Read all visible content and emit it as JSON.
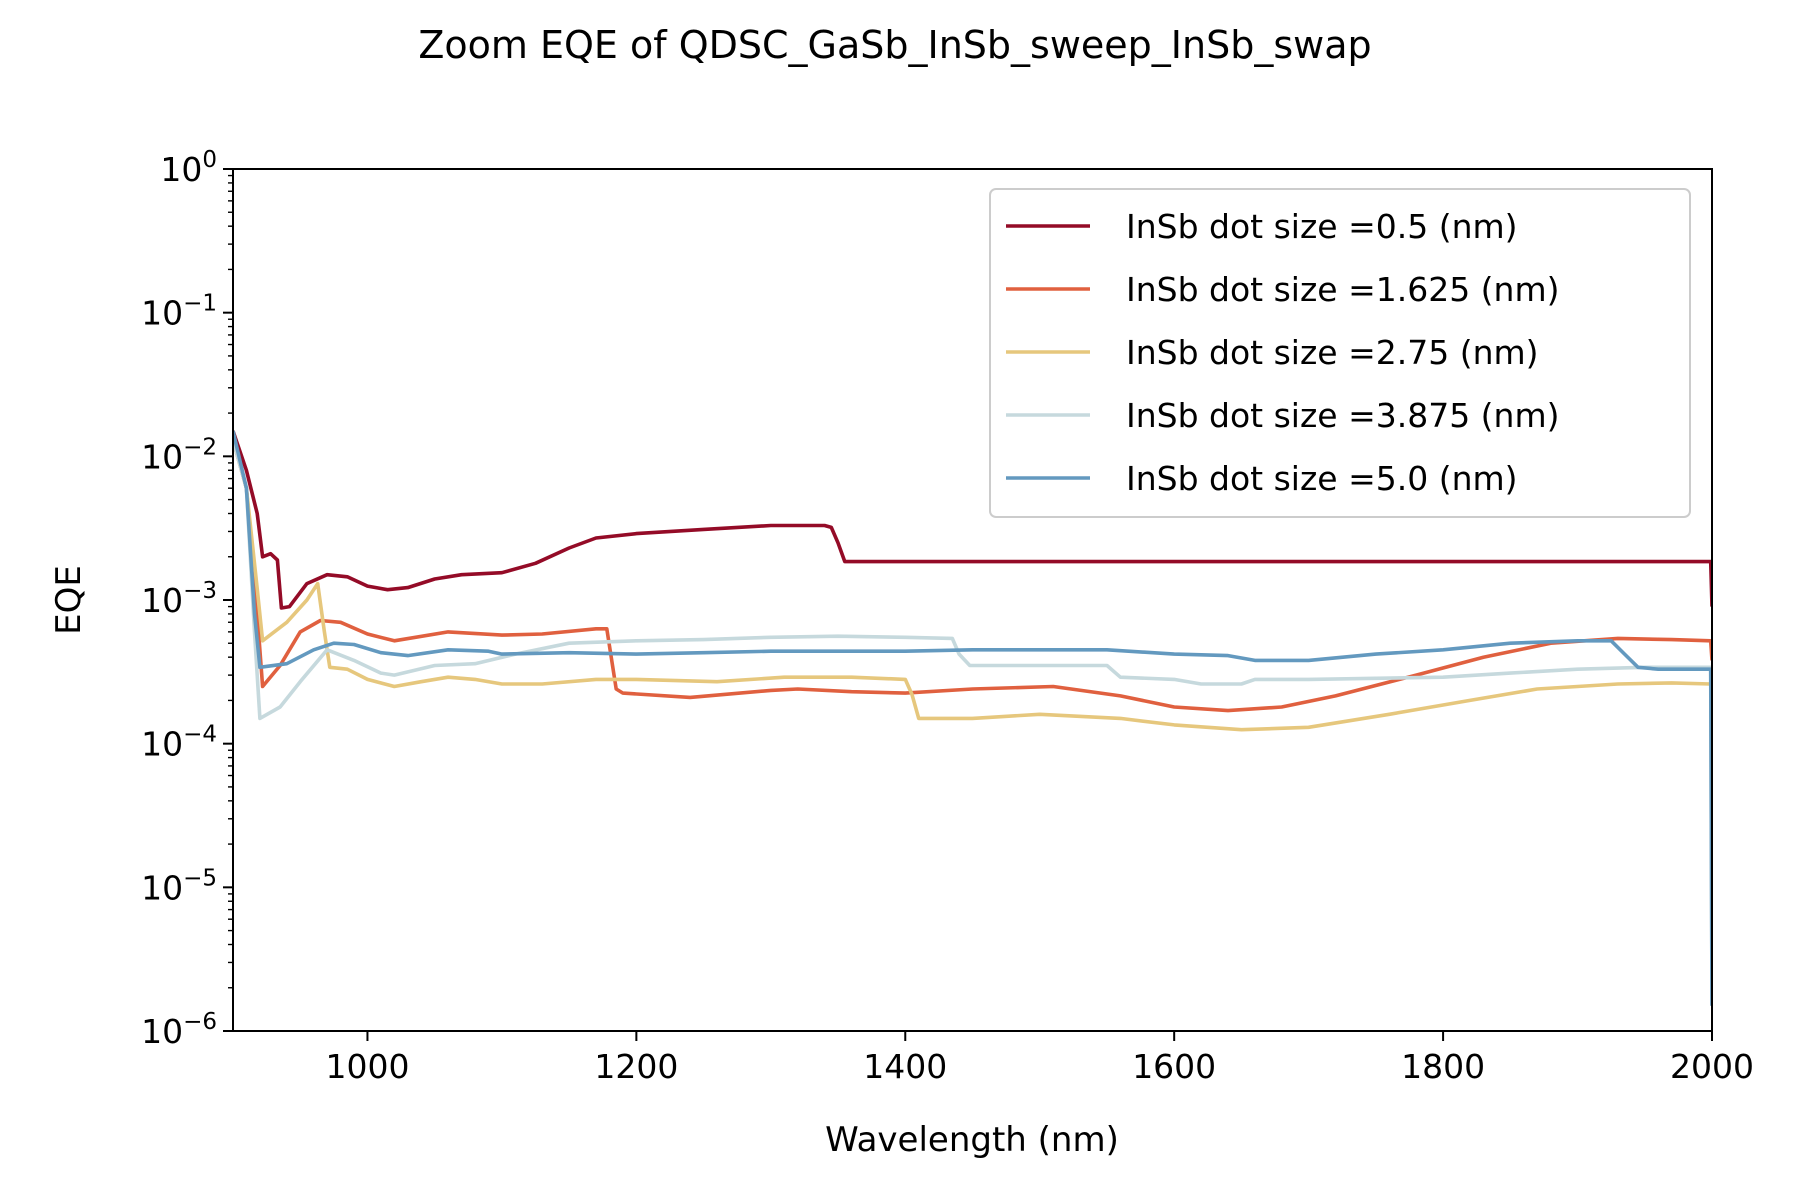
{
  "chart_data": {
    "type": "line",
    "title": "Zoom EQE of QDSC_GaSb_InSb_sweep_InSb_swap",
    "xlabel": "Wavelength (nm)",
    "ylabel": "EQE",
    "xlim": [
      900,
      2000
    ],
    "ylim": [
      1e-06,
      1
    ],
    "yscale": "log",
    "grid": false,
    "legend_position": "upper right",
    "x_ticks": [
      "1000",
      "1200",
      "1400",
      "1600",
      "1800",
      "2000"
    ],
    "y_ticks": [
      {
        "base": "10",
        "exp": "0",
        "value": 1
      },
      {
        "base": "10",
        "exp": "−1",
        "value": 0.1
      },
      {
        "base": "10",
        "exp": "−2",
        "value": 0.01
      },
      {
        "base": "10",
        "exp": "−3",
        "value": 0.001
      },
      {
        "base": "10",
        "exp": "−4",
        "value": 0.0001
      },
      {
        "base": "10",
        "exp": "−5",
        "value": 1e-05
      },
      {
        "base": "10",
        "exp": "−6",
        "value": 1e-06
      }
    ],
    "series": [
      {
        "name": "InSb dot size =0.5 (nm)",
        "color": "#940b27",
        "points": [
          [
            900,
            0.015
          ],
          [
            910,
            0.008
          ],
          [
            918,
            0.004
          ],
          [
            922,
            0.002
          ],
          [
            928,
            0.0021
          ],
          [
            933,
            0.0019
          ],
          [
            936,
            0.00088
          ],
          [
            942,
            0.0009
          ],
          [
            955,
            0.0013
          ],
          [
            970,
            0.0015
          ],
          [
            985,
            0.00145
          ],
          [
            1000,
            0.00125
          ],
          [
            1015,
            0.00118
          ],
          [
            1030,
            0.00122
          ],
          [
            1050,
            0.0014
          ],
          [
            1070,
            0.0015
          ],
          [
            1100,
            0.00155
          ],
          [
            1125,
            0.0018
          ],
          [
            1150,
            0.0023
          ],
          [
            1170,
            0.0027
          ],
          [
            1200,
            0.0029
          ],
          [
            1250,
            0.0031
          ],
          [
            1300,
            0.0033
          ],
          [
            1340,
            0.0033
          ],
          [
            1345,
            0.0032
          ],
          [
            1350,
            0.0025
          ],
          [
            1355,
            0.00185
          ],
          [
            1400,
            0.00185
          ],
          [
            1600,
            0.00185
          ],
          [
            1800,
            0.00185
          ],
          [
            1999,
            0.00185
          ],
          [
            2000,
            0.0009
          ]
        ]
      },
      {
        "name": "InSb dot size =1.625 (nm)",
        "color": "#e0603f",
        "points": [
          [
            900,
            0.013
          ],
          [
            910,
            0.006
          ],
          [
            918,
            0.0008
          ],
          [
            922,
            0.00025
          ],
          [
            935,
            0.00035
          ],
          [
            950,
            0.0006
          ],
          [
            965,
            0.00072
          ],
          [
            980,
            0.0007
          ],
          [
            1000,
            0.00058
          ],
          [
            1020,
            0.00052
          ],
          [
            1060,
            0.0006
          ],
          [
            1100,
            0.00057
          ],
          [
            1130,
            0.00058
          ],
          [
            1170,
            0.00063
          ],
          [
            1178,
            0.00063
          ],
          [
            1185,
            0.00024
          ],
          [
            1190,
            0.000225
          ],
          [
            1240,
            0.00021
          ],
          [
            1300,
            0.000235
          ],
          [
            1320,
            0.00024
          ],
          [
            1360,
            0.00023
          ],
          [
            1400,
            0.000225
          ],
          [
            1450,
            0.00024
          ],
          [
            1510,
            0.00025
          ],
          [
            1560,
            0.000215
          ],
          [
            1600,
            0.00018
          ],
          [
            1640,
            0.00017
          ],
          [
            1680,
            0.00018
          ],
          [
            1720,
            0.000215
          ],
          [
            1780,
            0.0003
          ],
          [
            1830,
            0.0004
          ],
          [
            1880,
            0.0005
          ],
          [
            1930,
            0.00054
          ],
          [
            1970,
            0.00053
          ],
          [
            1999,
            0.00052
          ],
          [
            2000,
            0.00038
          ]
        ]
      },
      {
        "name": "InSb dot size =2.75 (nm)",
        "color": "#e6c77d",
        "points": [
          [
            900,
            0.013
          ],
          [
            910,
            0.006
          ],
          [
            918,
            0.0012
          ],
          [
            922,
            0.00052
          ],
          [
            940,
            0.0007
          ],
          [
            955,
            0.001
          ],
          [
            963,
            0.0013
          ],
          [
            968,
            0.0006
          ],
          [
            972,
            0.00034
          ],
          [
            985,
            0.00033
          ],
          [
            1000,
            0.00028
          ],
          [
            1020,
            0.00025
          ],
          [
            1040,
            0.00027
          ],
          [
            1060,
            0.00029
          ],
          [
            1080,
            0.00028
          ],
          [
            1100,
            0.00026
          ],
          [
            1130,
            0.00026
          ],
          [
            1170,
            0.00028
          ],
          [
            1200,
            0.00028
          ],
          [
            1260,
            0.00027
          ],
          [
            1310,
            0.00029
          ],
          [
            1360,
            0.00029
          ],
          [
            1400,
            0.00028
          ],
          [
            1405,
            0.00022
          ],
          [
            1410,
            0.00015
          ],
          [
            1450,
            0.00015
          ],
          [
            1500,
            0.00016
          ],
          [
            1560,
            0.00015
          ],
          [
            1600,
            0.000135
          ],
          [
            1650,
            0.000125
          ],
          [
            1700,
            0.00013
          ],
          [
            1760,
            0.00016
          ],
          [
            1820,
            0.0002
          ],
          [
            1870,
            0.00024
          ],
          [
            1930,
            0.00026
          ],
          [
            1970,
            0.000265
          ],
          [
            1999,
            0.00026
          ],
          [
            2000,
            0.00019
          ]
        ]
      },
      {
        "name": "InSb dot size =3.875 (nm)",
        "color": "#c6d9dd",
        "points": [
          [
            900,
            0.013
          ],
          [
            910,
            0.006
          ],
          [
            916,
            0.0006
          ],
          [
            920,
            0.00015
          ],
          [
            935,
            0.00018
          ],
          [
            950,
            0.00027
          ],
          [
            970,
            0.00045
          ],
          [
            990,
            0.00038
          ],
          [
            1010,
            0.00031
          ],
          [
            1020,
            0.0003
          ],
          [
            1050,
            0.00035
          ],
          [
            1080,
            0.00036
          ],
          [
            1110,
            0.00042
          ],
          [
            1150,
            0.0005
          ],
          [
            1200,
            0.00052
          ],
          [
            1250,
            0.00053
          ],
          [
            1300,
            0.00055
          ],
          [
            1350,
            0.00056
          ],
          [
            1400,
            0.00055
          ],
          [
            1435,
            0.00054
          ],
          [
            1440,
            0.00042
          ],
          [
            1448,
            0.00035
          ],
          [
            1500,
            0.00035
          ],
          [
            1550,
            0.00035
          ],
          [
            1560,
            0.00029
          ],
          [
            1600,
            0.00028
          ],
          [
            1620,
            0.00026
          ],
          [
            1650,
            0.00026
          ],
          [
            1660,
            0.00028
          ],
          [
            1700,
            0.00028
          ],
          [
            1800,
            0.00029
          ],
          [
            1850,
            0.00031
          ],
          [
            1900,
            0.00033
          ],
          [
            1950,
            0.00034
          ],
          [
            1999,
            0.00034
          ],
          [
            2000,
            1.5e-06
          ]
        ]
      },
      {
        "name": "InSb dot size =5.0 (nm)",
        "color": "#6399bf",
        "points": [
          [
            900,
            0.015
          ],
          [
            910,
            0.006
          ],
          [
            916,
            0.0008
          ],
          [
            920,
            0.00034
          ],
          [
            940,
            0.00036
          ],
          [
            960,
            0.00045
          ],
          [
            975,
            0.0005
          ],
          [
            990,
            0.00049
          ],
          [
            1010,
            0.00043
          ],
          [
            1030,
            0.00041
          ],
          [
            1060,
            0.00045
          ],
          [
            1090,
            0.00044
          ],
          [
            1100,
            0.00042
          ],
          [
            1150,
            0.00043
          ],
          [
            1200,
            0.00042
          ],
          [
            1250,
            0.00043
          ],
          [
            1300,
            0.00044
          ],
          [
            1350,
            0.00044
          ],
          [
            1400,
            0.00044
          ],
          [
            1450,
            0.00045
          ],
          [
            1500,
            0.00045
          ],
          [
            1550,
            0.00045
          ],
          [
            1600,
            0.00042
          ],
          [
            1640,
            0.00041
          ],
          [
            1660,
            0.00038
          ],
          [
            1700,
            0.00038
          ],
          [
            1750,
            0.00042
          ],
          [
            1800,
            0.00045
          ],
          [
            1850,
            0.0005
          ],
          [
            1900,
            0.00052
          ],
          [
            1925,
            0.00052
          ],
          [
            1935,
            0.00042
          ],
          [
            1945,
            0.00034
          ],
          [
            1960,
            0.00033
          ],
          [
            1999,
            0.00033
          ],
          [
            2000,
            1.5e-06
          ]
        ]
      }
    ]
  }
}
